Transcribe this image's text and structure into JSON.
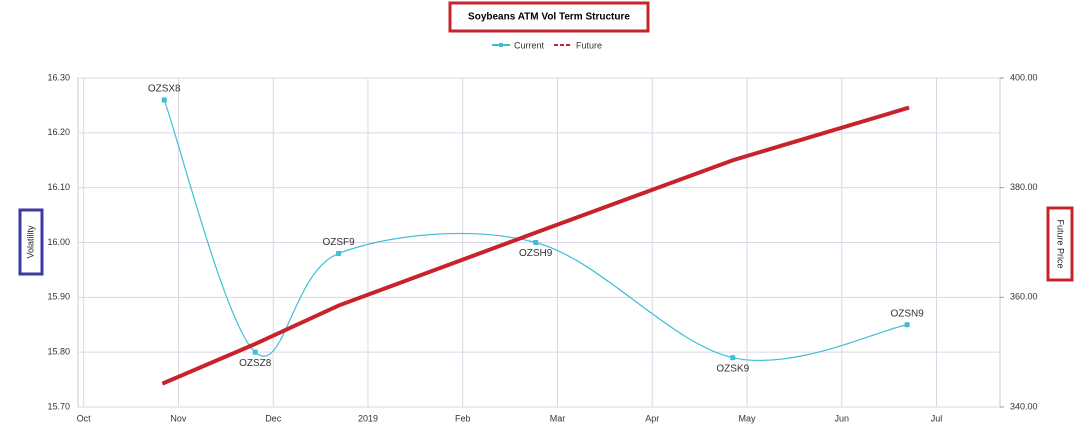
{
  "chart_data": {
    "type": "line",
    "title": "Soybeans ATM Vol Term Structure",
    "y_label": "Volatility",
    "y2_label": "Future Price",
    "xlim": [
      -0.06,
      9.67
    ],
    "xticks": [
      {
        "value": 0,
        "label": "Oct"
      },
      {
        "value": 1,
        "label": "Nov"
      },
      {
        "value": 2,
        "label": "Dec"
      },
      {
        "value": 3,
        "label": "2019"
      },
      {
        "value": 4,
        "label": "Feb"
      },
      {
        "value": 5,
        "label": "Mar"
      },
      {
        "value": 6,
        "label": "Apr"
      },
      {
        "value": 7,
        "label": "May"
      },
      {
        "value": 8,
        "label": "Jun"
      },
      {
        "value": 9,
        "label": "Jul"
      }
    ],
    "ylim": [
      15.7,
      16.3
    ],
    "yticks": [
      {
        "value": 15.7,
        "label": "15.70"
      },
      {
        "value": 15.8,
        "label": "15.80"
      },
      {
        "value": 15.9,
        "label": "15.90"
      },
      {
        "value": 16.0,
        "label": "16.00"
      },
      {
        "value": 16.1,
        "label": "16.10"
      },
      {
        "value": 16.2,
        "label": "16.20"
      },
      {
        "value": 16.3,
        "label": "16.30"
      }
    ],
    "y2lim": [
      340,
      400
    ],
    "y2ticks": [
      {
        "value": 340,
        "label": "340.00"
      },
      {
        "value": 360,
        "label": "360.00"
      },
      {
        "value": 380,
        "label": "380.00"
      },
      {
        "value": 400,
        "label": "400.00"
      }
    ],
    "grid": true,
    "series": [
      {
        "name": "Current",
        "color": "#3fbfd6",
        "x": [
          0.85,
          1.81,
          2.69,
          4.77,
          6.85,
          8.69
        ],
        "values": [
          16.26,
          15.8,
          15.98,
          16.0,
          15.79,
          15.85
        ],
        "point_labels": [
          "OZSX8",
          "OZSZ8",
          "OZSF9",
          "OZSH9",
          "OZSK9",
          "OZSN9"
        ]
      },
      {
        "name": "Future",
        "color": "#c8232c",
        "axis": "y2",
        "x": [
          0.85,
          1.81,
          2.69,
          4.77,
          6.85,
          8.69
        ],
        "values": [
          344.4,
          351.5,
          358.5,
          371.8,
          385,
          394.5
        ]
      }
    ]
  }
}
